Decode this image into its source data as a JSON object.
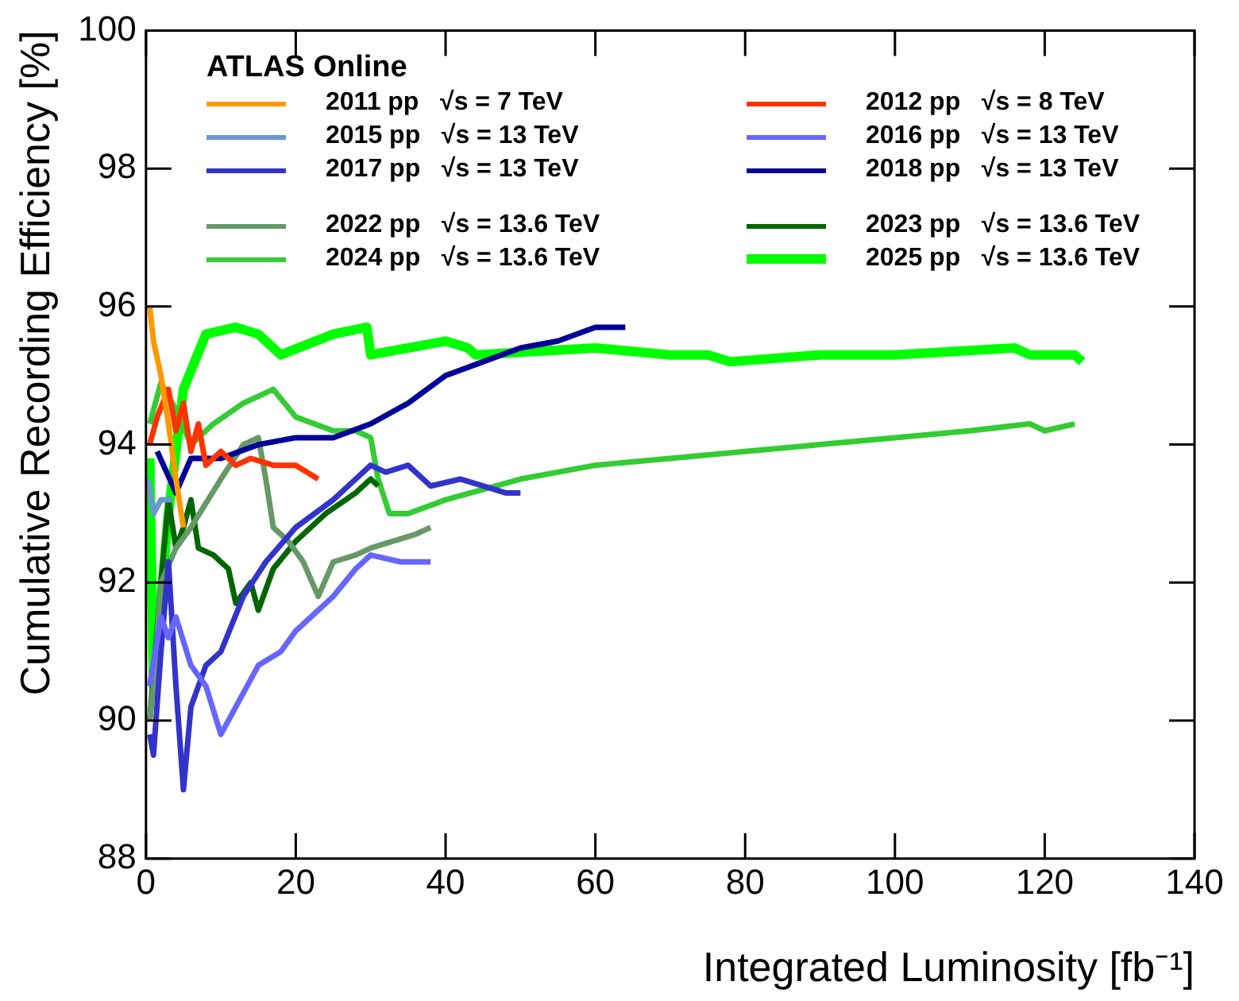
{
  "chart_data": {
    "type": "line",
    "xlabel": "Integrated Luminosity [fb⁻¹]",
    "ylabel": "Cumulative Recording Efficiency [%]",
    "legend_title": "ATLAS Online",
    "legend": "top left",
    "grid": false,
    "marker": "none",
    "xlim": [
      0,
      140
    ],
    "xticks": [
      0,
      20,
      40,
      60,
      80,
      100,
      120,
      140
    ],
    "ylim": [
      88,
      100
    ],
    "yticks": [
      88,
      90,
      92,
      94,
      96,
      98,
      100
    ],
    "series": [
      {
        "name": "2011 pp   √s = 7 TeV",
        "color": "#ff9900",
        "x": [
          0.5,
          1,
          2,
          3,
          4,
          5
        ],
        "values": [
          96.0,
          95.5,
          95.0,
          94.3,
          93.5,
          92.8
        ]
      },
      {
        "name": "2012 pp   √s = 8 TeV",
        "color": "#ff3300",
        "x": [
          0.5,
          1.5,
          3,
          4,
          5,
          6,
          7,
          8,
          10,
          12,
          14,
          17,
          20,
          23
        ],
        "values": [
          94.0,
          94.4,
          94.8,
          94.2,
          94.6,
          93.9,
          94.3,
          93.7,
          93.9,
          93.7,
          93.8,
          93.7,
          93.7,
          93.5
        ]
      },
      {
        "name": "2015 pp   √s = 13 TeV",
        "color": "#6699cc",
        "x": [
          0.3,
          1,
          2,
          3.5
        ],
        "values": [
          93.5,
          93.0,
          93.2,
          93.2
        ]
      },
      {
        "name": "2016 pp   √s = 13 TeV",
        "color": "#6666ff",
        "x": [
          0.5,
          2,
          3,
          4,
          6,
          8,
          10,
          12,
          15,
          18,
          20,
          25,
          28,
          30,
          34,
          38
        ],
        "values": [
          90.5,
          91.5,
          91.2,
          91.5,
          90.8,
          90.5,
          89.8,
          90.2,
          90.8,
          91.0,
          91.3,
          91.8,
          92.2,
          92.4,
          92.3,
          92.3
        ]
      },
      {
        "name": "2017 pp   √s = 13 TeV",
        "color": "#3333cc",
        "x": [
          0.5,
          1,
          2,
          3,
          4,
          5,
          6,
          8,
          10,
          13,
          16,
          20,
          25,
          28,
          30,
          32,
          35,
          38,
          42,
          45,
          48,
          50
        ],
        "values": [
          89.8,
          89.5,
          91.0,
          92.3,
          90.5,
          89.0,
          90.2,
          90.8,
          91.0,
          91.8,
          92.3,
          92.8,
          93.2,
          93.5,
          93.7,
          93.6,
          93.7,
          93.4,
          93.5,
          93.4,
          93.3,
          93.3
        ]
      },
      {
        "name": "2018 pp   √s = 13 TeV",
        "color": "#000099",
        "x": [
          1.5,
          4,
          6,
          10,
          15,
          20,
          25,
          30,
          35,
          40,
          45,
          50,
          55,
          60,
          64
        ],
        "values": [
          93.9,
          93.3,
          93.8,
          93.8,
          94.0,
          94.1,
          94.1,
          94.3,
          94.6,
          95.0,
          95.2,
          95.4,
          95.5,
          95.7,
          95.7
        ]
      },
      {
        "name": "2022 pp   √s = 13.6 TeV",
        "color": "#669966",
        "x": [
          0.5,
          1,
          2,
          4,
          6,
          10,
          13,
          15,
          16,
          17,
          19,
          21,
          23,
          25,
          28,
          30,
          33,
          36,
          38
        ],
        "values": [
          90.0,
          90.5,
          92.0,
          92.5,
          92.8,
          93.5,
          94.0,
          94.1,
          93.5,
          92.8,
          92.6,
          92.3,
          91.8,
          92.3,
          92.4,
          92.5,
          92.6,
          92.7,
          92.8
        ]
      },
      {
        "name": "2023 pp   √s = 13.6 TeV",
        "color": "#006600",
        "x": [
          0.5,
          2,
          3,
          4,
          5,
          6,
          7,
          9,
          11,
          12,
          14,
          15,
          17,
          20,
          24,
          28,
          30,
          31
        ],
        "values": [
          90.0,
          92.0,
          93.2,
          92.5,
          92.8,
          93.2,
          92.5,
          92.4,
          92.2,
          91.7,
          92.0,
          91.6,
          92.2,
          92.6,
          93.0,
          93.3,
          93.5,
          93.4
        ]
      },
      {
        "name": "2024 pp   √s = 13.6 TeV",
        "color": "#33cc33",
        "x": [
          0.5,
          2,
          4,
          6,
          9,
          13,
          17,
          20,
          25,
          28,
          30,
          31,
          32.5,
          35,
          40,
          50,
          60,
          70,
          80,
          90,
          100,
          110,
          118,
          120,
          124
        ],
        "values": [
          94.3,
          94.9,
          94.5,
          94.0,
          94.3,
          94.6,
          94.8,
          94.4,
          94.2,
          94.2,
          94.1,
          93.5,
          93.0,
          93.0,
          93.2,
          93.5,
          93.7,
          93.8,
          93.9,
          94.0,
          94.1,
          94.2,
          94.3,
          94.2,
          94.3
        ]
      },
      {
        "name": "2025 pp   √s = 13.6 TeV",
        "color": "#00ff00",
        "x": [
          0.5,
          1,
          3,
          5,
          8,
          12,
          15,
          18,
          25,
          29.5,
          30,
          40,
          43,
          44,
          60,
          70,
          75,
          78,
          90,
          100,
          116,
          118,
          124,
          125
        ],
        "values": [
          93.8,
          90.5,
          93.0,
          94.8,
          95.6,
          95.7,
          95.6,
          95.3,
          95.6,
          95.7,
          95.3,
          95.5,
          95.4,
          95.3,
          95.4,
          95.3,
          95.3,
          95.2,
          95.3,
          95.3,
          95.4,
          95.3,
          95.3,
          95.2
        ]
      }
    ]
  }
}
